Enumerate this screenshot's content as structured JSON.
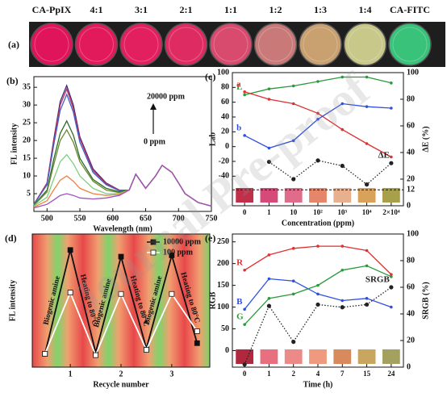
{
  "watermark": "Journal Pre-proof",
  "panel_a": {
    "label": "(a)",
    "dishes": [
      {
        "label": "CA-PpIX",
        "color": "#e0145a"
      },
      {
        "label": "4:1",
        "color": "#e21a5c"
      },
      {
        "label": "3:1",
        "color": "#e3205f"
      },
      {
        "label": "2:1",
        "color": "#de2c62"
      },
      {
        "label": "1:1",
        "color": "#d84a6e"
      },
      {
        "label": "1:2",
        "color": "#c97a78"
      },
      {
        "label": "1:3",
        "color": "#c9a070"
      },
      {
        "label": "1:4",
        "color": "#c8c88a"
      },
      {
        "label": "CA-FITC",
        "color": "#39c27a"
      }
    ]
  },
  "chart_data": [
    {
      "type": "line",
      "panel_label": "(b)",
      "xlabel": "Wavelength (nm)",
      "ylabel": "FL intensity",
      "x": [
        480,
        500,
        510,
        520,
        530,
        540,
        550,
        570,
        590,
        610,
        625,
        635,
        650,
        665,
        675,
        690,
        700,
        710,
        730,
        750
      ],
      "xlim": [
        480,
        750
      ],
      "xticks": [
        500,
        550,
        600,
        650,
        700,
        750
      ],
      "ylim": [
        0,
        38
      ],
      "yticks": [
        5,
        10,
        15,
        20,
        25,
        30,
        35
      ],
      "annotations": [
        "20000 ppm",
        "0 ppm"
      ],
      "series": [
        {
          "color": "#3a2a7a",
          "values": [
            2,
            8,
            20,
            31,
            35.5,
            30,
            21,
            12,
            8,
            6,
            6,
            10.5,
            6.5,
            10,
            13,
            11,
            8,
            5,
            2.5,
            1.5
          ]
        },
        {
          "color": "#c03060",
          "values": [
            2,
            8,
            19.5,
            30,
            34.5,
            29,
            20.5,
            11.5,
            7.8,
            6,
            6,
            10.5,
            6.5,
            10,
            13,
            11,
            8,
            5,
            2.5,
            1.5
          ]
        },
        {
          "color": "#4060c8",
          "values": [
            2,
            7.5,
            18.5,
            28.5,
            33,
            28,
            19.5,
            11,
            7.5,
            5.8,
            6,
            10.5,
            6.5,
            10,
            13,
            11,
            8,
            5,
            2.5,
            1.5
          ]
        },
        {
          "color": "#2e6b2e",
          "values": [
            1.8,
            6,
            14.5,
            22,
            25.5,
            21.5,
            15,
            9,
            6.5,
            5.5,
            6,
            10.5,
            6.5,
            10,
            13,
            11,
            8,
            5,
            2.5,
            1.5
          ]
        },
        {
          "color": "#6a8a2e",
          "values": [
            1.7,
            5.5,
            13,
            20,
            23,
            19.5,
            14,
            8.5,
            6,
            5.3,
            6,
            10.5,
            6.5,
            10,
            13,
            11,
            8,
            5,
            2.5,
            1.5
          ]
        },
        {
          "color": "#7fd07f",
          "values": [
            1.5,
            4,
            9,
            14,
            16,
            13.5,
            10,
            6.5,
            5,
            5,
            6,
            10.5,
            6.5,
            10,
            13,
            11,
            8,
            5,
            2.5,
            1.5
          ]
        },
        {
          "color": "#f08040",
          "values": [
            1.2,
            3,
            6,
            8.8,
            10,
            8.5,
            6.5,
            5,
            4.5,
            4.8,
            6,
            10.5,
            6.5,
            10,
            13,
            11,
            8,
            5,
            2.5,
            1.5
          ]
        },
        {
          "color": "#a050c0",
          "values": [
            1,
            2,
            3.2,
            4.5,
            5,
            4.5,
            3.8,
            3.5,
            3.8,
            4.5,
            6,
            10.5,
            6.5,
            10,
            13,
            11,
            8,
            5,
            2.5,
            1.5
          ]
        }
      ]
    },
    {
      "type": "line",
      "panel_label": "(c)",
      "xlabel": "Concentration (ppm)",
      "ylabel": "Lab",
      "y2label": "ΔE (%)",
      "categories": [
        "0",
        "1",
        "10",
        "10²",
        "10³",
        "10⁴",
        "2×10⁴"
      ],
      "ylim": [
        -80,
        100
      ],
      "yticks": [
        -40,
        -20,
        0,
        20,
        40,
        60,
        80,
        100
      ],
      "y2lim": [
        0,
        100
      ],
      "y2ticks": [
        0,
        20,
        40,
        60,
        80,
        100
      ],
      "y2_reference": 12,
      "swatches": [
        "#c0304a",
        "#d54a78",
        "#e06b8a",
        "#e5866a",
        "#e8b08e",
        "#d9a25a",
        "#a7a04a"
      ],
      "series": [
        {
          "name": "L",
          "color": "#2a9a3a",
          "marker": "circle",
          "values": [
            70,
            78,
            82,
            88,
            94,
            94,
            86
          ]
        },
        {
          "name": "a",
          "color": "#e03030",
          "marker": "circle",
          "values": [
            74,
            64,
            58,
            45,
            23,
            4,
            -14
          ]
        },
        {
          "name": "b",
          "color": "#3050e0",
          "marker": "circle",
          "values": [
            15,
            -2,
            8,
            37,
            58,
            54,
            52
          ]
        },
        {
          "name": "ΔE",
          "color": "#222222",
          "marker": "circle",
          "style": "dotted",
          "axis": "y2",
          "values": [
            null,
            33,
            20,
            34,
            30,
            16,
            32
          ]
        }
      ]
    },
    {
      "type": "line",
      "panel_label": "(d)",
      "xlabel": "Recycle number",
      "ylabel": "FL intensity",
      "x": [
        0.5,
        1,
        1.5,
        2,
        2.5,
        3,
        3.5
      ],
      "xlim": [
        0.25,
        3.75
      ],
      "xticks": [
        1,
        2,
        3
      ],
      "ylim": [
        0,
        100
      ],
      "legend": "upper right",
      "annotations": [
        "Biogenic amine",
        "Heating to 80°C",
        "Biogenic amine",
        "Heating to 80°C",
        "Biogenic amine",
        "Heating to 80°C"
      ],
      "series": [
        {
          "name": "10000 ppm",
          "color": "#111111",
          "marker": "square",
          "values": [
            10,
            88,
            11,
            83,
            14,
            84,
            18
          ]
        },
        {
          "name": "100 ppm",
          "color": "#ffffff",
          "marker": "square",
          "values": [
            10,
            56,
            9,
            55,
            13,
            55,
            27
          ]
        }
      ]
    },
    {
      "type": "line",
      "panel_label": "(e)",
      "xlabel": "Time (h)",
      "ylabel": "RGB",
      "y2label": "SRGB (%)",
      "categories": [
        "0",
        "1",
        "2",
        "4",
        "7",
        "15",
        "24"
      ],
      "ylim": [
        -38,
        268
      ],
      "yticks": [
        0,
        50,
        100,
        150,
        200,
        250
      ],
      "y2lim": [
        0,
        100
      ],
      "y2ticks": [
        0,
        20,
        40,
        60,
        80,
        100
      ],
      "swatches": [
        "#b0283e",
        "#e8707e",
        "#ec8a88",
        "#ef9a7e",
        "#d88a5c",
        "#c9a660",
        "#a4a060"
      ],
      "series": [
        {
          "name": "R",
          "color": "#e03030",
          "marker": "circle",
          "values": [
            185,
            220,
            235,
            240,
            240,
            230,
            175
          ]
        },
        {
          "name": "B",
          "color": "#3050e0",
          "marker": "circle",
          "values": [
            95,
            165,
            160,
            130,
            115,
            120,
            100
          ]
        },
        {
          "name": "G",
          "color": "#2a9a3a",
          "marker": "circle",
          "values": [
            60,
            120,
            130,
            150,
            185,
            195,
            170
          ]
        },
        {
          "name": "SRGB",
          "color": "#222222",
          "marker": "circle",
          "style": "dotted",
          "axis": "y2",
          "values": [
            2,
            46,
            19,
            47,
            45,
            47,
            60
          ]
        }
      ]
    }
  ]
}
